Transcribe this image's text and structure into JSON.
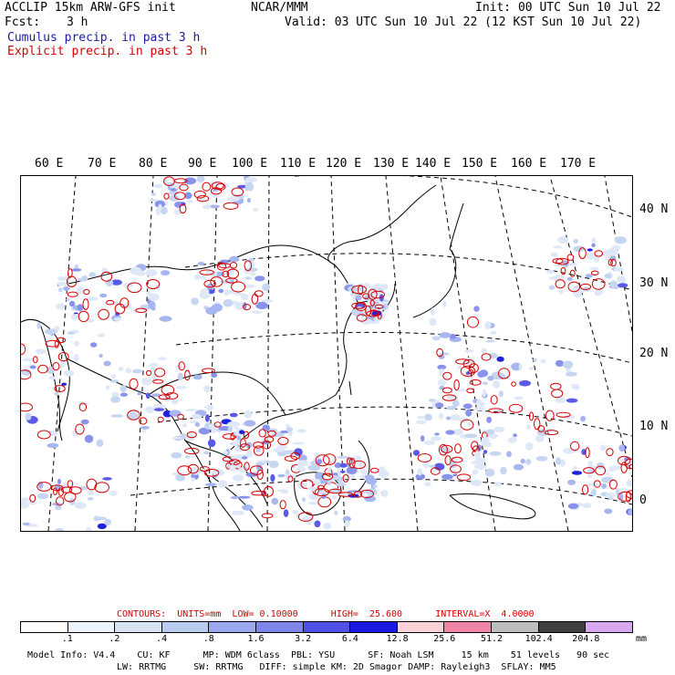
{
  "header": {
    "model": "ACCLIP 15km ARW-GFS init",
    "center": "NCAR/MMM",
    "init": "Init: 00 UTC Sun 10 Jul 22",
    "fcst_label": "Fcst:",
    "fcst_value": "3 h",
    "valid": "Valid: 03 UTC Sun 10 Jul 22 (12 KST Sun 10 Jul 22)",
    "cumulus": "Cumulus precip. in past 3 h",
    "explicit": "Explicit precip. in past 3 h"
  },
  "map": {
    "lon_labels": [
      "60 E",
      "70 E",
      "80 E",
      "90 E",
      "100 E",
      "110 E",
      "120 E",
      "130 E",
      "140 E",
      "150 E",
      "160 E",
      "170 E"
    ],
    "lat_labels": [
      "40 N",
      "30 N",
      "20 N",
      "10 N",
      "0"
    ]
  },
  "legend": {
    "contours": "CONTOURS:  UNITS=mm  LOW= 0.10000      HIGH=  25.600      INTERVAL=X  4.0000",
    "ticks": [
      ".1",
      ".2",
      ".4",
      ".8",
      "1.6",
      "3.2",
      "6.4",
      "12.8",
      "25.6",
      "51.2",
      "102.4",
      "204.8"
    ],
    "units": "mm",
    "colors": [
      "#ffffff",
      "#eef4fb",
      "#d6e4f4",
      "#b9cdef",
      "#9aa9ee",
      "#7f86ea",
      "#5050e6",
      "#1a1ae0",
      "#f7d2d6",
      "#ef86a8",
      "#bdbdbd",
      "#404040",
      "#d8a8f0"
    ]
  },
  "footer": {
    "line1": "Model Info: V4.4    CU: KF      MP: WDM 6class  PBL: YSU      SF: Noah LSM     15 km    51 levels   90 sec",
    "line2": "LW: RRTMG     SW: RRTMG   DIFF: simple KM: 2D Smagor DAMP: Rayleigh3  SFLAY: MM5"
  },
  "colors": {
    "cumulus": "#1a1aa6",
    "explicit": "#d40000"
  }
}
